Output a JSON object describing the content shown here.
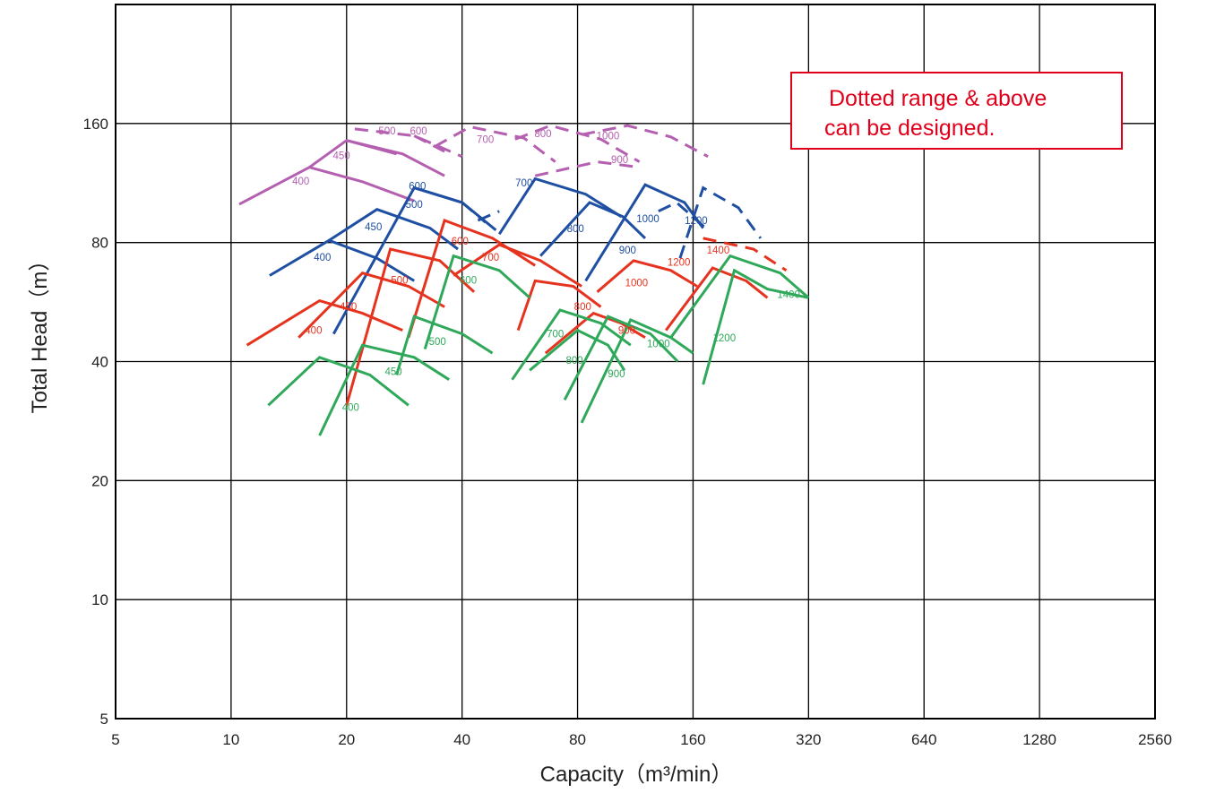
{
  "chart_data": {
    "type": "line",
    "x_scale": "log2",
    "y_scale": "log2",
    "xlabel": "Capacity（m³/min）",
    "ylabel": "Total Head（m）",
    "x_ticks": [
      "5",
      "10",
      "20",
      "40",
      "80",
      "160",
      "320",
      "640",
      "1280",
      "2560"
    ],
    "y_ticks": [
      "5",
      "10",
      "20",
      "40",
      "80",
      "160"
    ],
    "xlim": [
      5,
      2560
    ],
    "ylim": [
      5,
      320
    ],
    "grid": true,
    "note": [
      "Dotted range & above",
      "can be designed."
    ],
    "colors": {
      "purple": "#b45fb0",
      "blue": "#1f4fa2",
      "red": "#e5331f",
      "green": "#2fa85a",
      "note": "#e0001b"
    },
    "series": [
      {
        "name": "400",
        "color": "purple",
        "dashed": false,
        "points": [
          [
            10.5,
            100
          ],
          [
            16,
            124
          ],
          [
            22,
            114
          ],
          [
            30,
            102
          ]
        ]
      },
      {
        "name": "450",
        "color": "purple",
        "dashed": false,
        "points": [
          [
            16,
            124
          ],
          [
            20,
            145
          ],
          [
            28,
            134
          ],
          [
            36,
            118
          ]
        ]
      },
      {
        "name": "500",
        "color": "purple",
        "dashed": false,
        "points": [
          [
            20,
            145
          ],
          [
            27,
            134
          ]
        ]
      },
      {
        "name": "500",
        "color": "purple",
        "dashed": true,
        "points": [
          [
            21,
            155
          ],
          [
            30,
            149
          ],
          [
            40,
            132
          ]
        ]
      },
      {
        "name": "600",
        "color": "purple",
        "dashed": true,
        "points": [
          [
            30,
            149
          ],
          [
            36,
            136
          ]
        ]
      },
      {
        "name": "700",
        "color": "purple",
        "dashed": true,
        "points": [
          [
            34,
            140
          ],
          [
            42,
            157
          ],
          [
            58,
            147
          ],
          [
            70,
            128
          ]
        ]
      },
      {
        "name": "800",
        "color": "purple",
        "dashed": true,
        "points": [
          [
            55,
            146
          ],
          [
            68,
            158
          ],
          [
            92,
            146
          ],
          [
            116,
            128
          ]
        ]
      },
      {
        "name": "900",
        "color": "purple",
        "dashed": true,
        "points": [
          [
            62,
            118
          ],
          [
            90,
            128
          ],
          [
            116,
            124
          ]
        ]
      },
      {
        "name": "1000",
        "color": "purple",
        "dashed": true,
        "points": [
          [
            82,
            150
          ],
          [
            108,
            158
          ],
          [
            140,
            148
          ],
          [
            175,
            132
          ]
        ]
      },
      {
        "name": "400",
        "color": "blue",
        "dashed": false,
        "points": [
          [
            12.6,
            66
          ],
          [
            18,
            81
          ],
          [
            24,
            73
          ],
          [
            30,
            64
          ]
        ]
      },
      {
        "name": "450",
        "color": "blue",
        "dashed": false,
        "points": [
          [
            18,
            81
          ],
          [
            24,
            97
          ],
          [
            33,
            87
          ],
          [
            39,
            77
          ]
        ]
      },
      {
        "name": "500",
        "color": "blue",
        "dashed": false,
        "points": [
          [
            18.5,
            47
          ],
          [
            30,
            110
          ],
          [
            40,
            101
          ],
          [
            49,
            86
          ]
        ]
      },
      {
        "name": "500",
        "color": "blue",
        "dashed": true,
        "points": [
          [
            40,
            101
          ],
          [
            46,
            90
          ]
        ]
      },
      {
        "name": "600",
        "color": "blue",
        "dashed": false,
        "points": [
          [
            30,
            110
          ],
          [
            40,
            101
          ]
        ]
      },
      {
        "name": "700",
        "color": "blue",
        "dashed": false,
        "points": [
          [
            50,
            84
          ],
          [
            62,
            116
          ],
          [
            84,
            106
          ],
          [
            104,
            93
          ]
        ]
      },
      {
        "name": "700",
        "color": "blue",
        "dashed": true,
        "points": [
          [
            44,
            91
          ],
          [
            50,
            96
          ]
        ]
      },
      {
        "name": "800",
        "color": "blue",
        "dashed": false,
        "points": [
          [
            64,
            74
          ],
          [
            86,
            101
          ],
          [
            105,
            93
          ],
          [
            120,
            82
          ]
        ]
      },
      {
        "name": "900",
        "color": "blue",
        "dashed": false,
        "points": [
          [
            84,
            64
          ],
          [
            120,
            112
          ],
          [
            152,
            101
          ],
          [
            170,
            87
          ]
        ]
      },
      {
        "name": "1000",
        "color": "blue",
        "dashed": true,
        "points": [
          [
            130,
            96
          ],
          [
            145,
            101
          ],
          [
            175,
            86
          ]
        ]
      },
      {
        "name": "1200",
        "color": "blue",
        "dashed": true,
        "points": [
          [
            148,
            73
          ],
          [
            170,
            110
          ],
          [
            210,
            98
          ],
          [
            240,
            82
          ]
        ]
      },
      {
        "name": "400",
        "color": "red",
        "dashed": false,
        "points": [
          [
            11,
            44
          ],
          [
            17,
            57
          ],
          [
            22,
            53
          ],
          [
            28,
            48
          ]
        ]
      },
      {
        "name": "450",
        "color": "red",
        "dashed": false,
        "points": [
          [
            15,
            46
          ],
          [
            22,
            67
          ],
          [
            29,
            62
          ],
          [
            36,
            55
          ]
        ]
      },
      {
        "name": "500",
        "color": "red",
        "dashed": false,
        "points": [
          [
            20,
            31
          ],
          [
            26,
            77
          ],
          [
            35,
            72
          ],
          [
            43,
            60
          ]
        ]
      },
      {
        "name": "600",
        "color": "red",
        "dashed": false,
        "points": [
          [
            29,
            46
          ],
          [
            36,
            91
          ],
          [
            48,
            82
          ],
          [
            62,
            70
          ]
        ]
      },
      {
        "name": "700",
        "color": "red",
        "dashed": false,
        "points": [
          [
            38,
            66
          ],
          [
            50,
            79
          ],
          [
            64,
            72
          ],
          [
            82,
            62
          ]
        ]
      },
      {
        "name": "800",
        "color": "red",
        "dashed": false,
        "points": [
          [
            56,
            48
          ],
          [
            62,
            64
          ],
          [
            78,
            62
          ],
          [
            92,
            55
          ]
        ]
      },
      {
        "name": "900",
        "color": "red",
        "dashed": false,
        "points": [
          [
            66,
            42
          ],
          [
            88,
            53
          ],
          [
            104,
            50
          ],
          [
            120,
            46
          ]
        ]
      },
      {
        "name": "1000",
        "color": "red",
        "dashed": false,
        "points": [
          [
            90,
            60
          ],
          [
            112,
            72
          ],
          [
            140,
            68
          ],
          [
            164,
            62
          ]
        ]
      },
      {
        "name": "1200",
        "color": "red",
        "dashed": false,
        "points": [
          [
            136,
            48
          ],
          [
            180,
            69
          ],
          [
            220,
            64
          ],
          [
            250,
            58
          ]
        ]
      },
      {
        "name": "1400",
        "color": "red",
        "dashed": true,
        "points": [
          [
            170,
            82
          ],
          [
            230,
            77
          ],
          [
            280,
            68
          ]
        ]
      },
      {
        "name": "400",
        "color": "green",
        "dashed": false,
        "points": [
          [
            12.5,
            31
          ],
          [
            17,
            41
          ],
          [
            23,
            37
          ],
          [
            29,
            31
          ]
        ]
      },
      {
        "name": "450",
        "color": "green",
        "dashed": false,
        "points": [
          [
            17,
            26
          ],
          [
            22,
            44
          ],
          [
            30,
            41
          ],
          [
            37,
            36
          ]
        ]
      },
      {
        "name": "500",
        "color": "green",
        "dashed": false,
        "points": [
          [
            27,
            37
          ],
          [
            30,
            52
          ],
          [
            40,
            47
          ],
          [
            48,
            42
          ]
        ]
      },
      {
        "name": "600",
        "color": "green",
        "dashed": false,
        "points": [
          [
            32,
            43
          ],
          [
            38,
            74
          ],
          [
            50,
            68
          ],
          [
            60,
            58
          ]
        ]
      },
      {
        "name": "700",
        "color": "green",
        "dashed": false,
        "points": [
          [
            54,
            36
          ],
          [
            72,
            54
          ],
          [
            92,
            50
          ],
          [
            110,
            44
          ]
        ]
      },
      {
        "name": "800",
        "color": "green",
        "dashed": false,
        "points": [
          [
            60,
            38
          ],
          [
            80,
            48
          ],
          [
            96,
            44
          ],
          [
            106,
            38
          ]
        ]
      },
      {
        "name": "900",
        "color": "green",
        "dashed": false,
        "points": [
          [
            74,
            32
          ],
          [
            96,
            52
          ],
          [
            124,
            47
          ],
          [
            146,
            40
          ]
        ]
      },
      {
        "name": "1000",
        "color": "green",
        "dashed": false,
        "points": [
          [
            82,
            28
          ],
          [
            110,
            51
          ],
          [
            140,
            46
          ],
          [
            160,
            42
          ]
        ]
      },
      {
        "name": "1200",
        "color": "green",
        "dashed": false,
        "points": [
          [
            170,
            35
          ],
          [
            205,
            68
          ],
          [
            250,
            61
          ],
          [
            320,
            58
          ]
        ]
      },
      {
        "name": "1400",
        "color": "green",
        "dashed": false,
        "points": [
          [
            140,
            46
          ],
          [
            200,
            74
          ],
          [
            270,
            67
          ],
          [
            320,
            58
          ]
        ]
      }
    ],
    "labels": [
      {
        "text": "400",
        "color": "purple",
        "x": 15.2,
        "y": 112
      },
      {
        "text": "450",
        "color": "purple",
        "x": 19.4,
        "y": 130
      },
      {
        "text": "500",
        "color": "purple",
        "x": 25.5,
        "y": 150
      },
      {
        "text": "600",
        "color": "purple",
        "x": 30.8,
        "y": 150
      },
      {
        "text": "700",
        "color": "purple",
        "x": 46.0,
        "y": 143
      },
      {
        "text": "800",
        "color": "purple",
        "x": 65.0,
        "y": 148
      },
      {
        "text": "900",
        "color": "purple",
        "x": 103.0,
        "y": 127
      },
      {
        "text": "1000",
        "color": "purple",
        "x": 96.0,
        "y": 146
      },
      {
        "text": "400",
        "color": "blue",
        "x": 17.3,
        "y": 72
      },
      {
        "text": "450",
        "color": "blue",
        "x": 23.5,
        "y": 86
      },
      {
        "text": "500",
        "color": "blue",
        "x": 30.0,
        "y": 98
      },
      {
        "text": "600",
        "color": "blue",
        "x": 30.6,
        "y": 109
      },
      {
        "text": "700",
        "color": "blue",
        "x": 58.0,
        "y": 111
      },
      {
        "text": "800",
        "color": "blue",
        "x": 79.0,
        "y": 85
      },
      {
        "text": "900",
        "color": "blue",
        "x": 108.0,
        "y": 75
      },
      {
        "text": "1000",
        "color": "blue",
        "x": 122.0,
        "y": 90
      },
      {
        "text": "1200",
        "color": "blue",
        "x": 163.0,
        "y": 89
      },
      {
        "text": "400",
        "color": "red",
        "x": 16.4,
        "y": 47
      },
      {
        "text": "450",
        "color": "red",
        "x": 20.2,
        "y": 54
      },
      {
        "text": "500",
        "color": "red",
        "x": 27.5,
        "y": 63
      },
      {
        "text": "600",
        "color": "red",
        "x": 39.5,
        "y": 79
      },
      {
        "text": "700",
        "color": "red",
        "x": 47.5,
        "y": 72
      },
      {
        "text": "800",
        "color": "red",
        "x": 82.5,
        "y": 54
      },
      {
        "text": "900",
        "color": "red",
        "x": 107.5,
        "y": 47
      },
      {
        "text": "1000",
        "color": "red",
        "x": 114.0,
        "y": 62
      },
      {
        "text": "1200",
        "color": "red",
        "x": 147.0,
        "y": 70
      },
      {
        "text": "1400",
        "color": "red",
        "x": 186.0,
        "y": 75
      },
      {
        "text": "400",
        "color": "green",
        "x": 20.5,
        "y": 30
      },
      {
        "text": "450",
        "color": "green",
        "x": 26.5,
        "y": 37
      },
      {
        "text": "500",
        "color": "green",
        "x": 34.5,
        "y": 44
      },
      {
        "text": "600",
        "color": "green",
        "x": 41.5,
        "y": 63
      },
      {
        "text": "700",
        "color": "green",
        "x": 70.0,
        "y": 46
      },
      {
        "text": "800",
        "color": "green",
        "x": 78.5,
        "y": 39.5
      },
      {
        "text": "900",
        "color": "green",
        "x": 101.0,
        "y": 36.5
      },
      {
        "text": "1000",
        "color": "green",
        "x": 130.0,
        "y": 43.5
      },
      {
        "text": "1200",
        "color": "green",
        "x": 193.0,
        "y": 45
      },
      {
        "text": "1400",
        "color": "green",
        "x": 284.0,
        "y": 58
      }
    ]
  }
}
